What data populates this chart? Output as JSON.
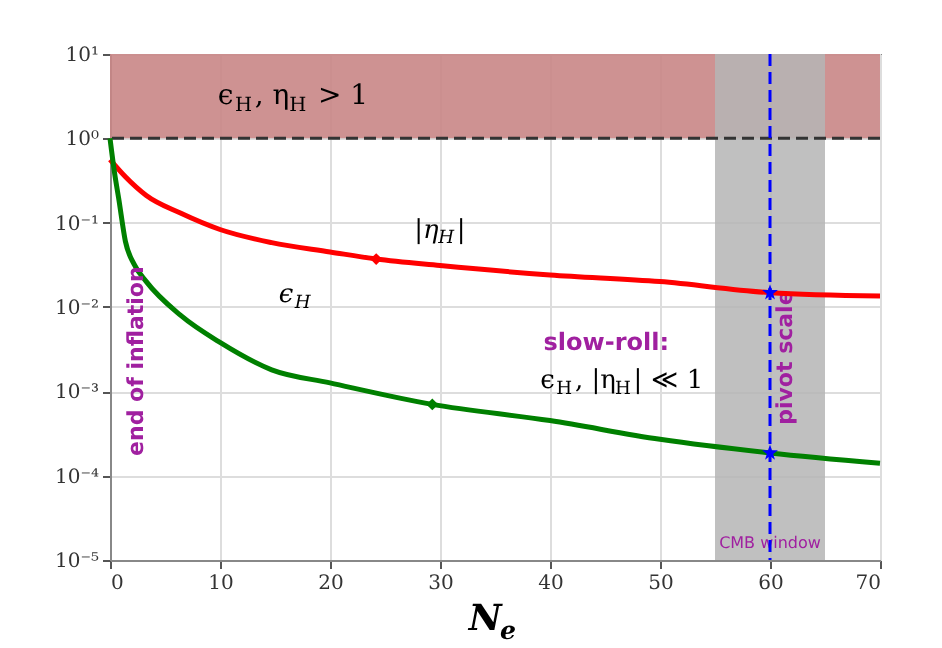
{
  "chart_data": {
    "type": "line",
    "xlabel": "N$_{e}$",
    "xlim": [
      0,
      70
    ],
    "xticks": [
      0,
      10,
      20,
      30,
      40,
      50,
      60,
      70
    ],
    "ylim": [
      1e-05,
      10
    ],
    "log": "y",
    "yticks": [
      {
        "value": 1e-05,
        "label": "10⁻⁵"
      },
      {
        "value": 0.0001,
        "label": "10⁻⁴"
      },
      {
        "value": 0.001,
        "label": "10⁻³"
      },
      {
        "value": 0.01,
        "label": "10⁻²"
      },
      {
        "value": 0.1,
        "label": "10⁻¹"
      },
      {
        "value": 1,
        "label": "10⁰"
      },
      {
        "value": 10,
        "label": "10¹"
      }
    ],
    "grid": true,
    "legend": false,
    "series": [
      {
        "name": "|η$_{H}$|",
        "type": "line",
        "color": "#ff0000",
        "x": [
          0,
          1.4,
          3.3,
          6.4,
          10,
          14.7,
          20,
          24.2,
          30,
          40,
          50,
          60,
          70
        ],
        "values": [
          0.56,
          0.35,
          0.21,
          0.13,
          0.083,
          0.058,
          0.045,
          0.037,
          0.031,
          0.024,
          0.02,
          0.0148,
          0.0135
        ]
      },
      {
        "name": "ϵ$_{H}$",
        "type": "line",
        "color": "#008000",
        "x": [
          0,
          0.4,
          0.8,
          1.4,
          2.2,
          3.3,
          6.4,
          10,
          14.7,
          20,
          29.3,
          40,
          50,
          60,
          70
        ],
        "values": [
          1.0,
          0.4,
          0.19,
          0.06,
          0.032,
          0.02,
          0.008,
          0.0038,
          0.0018,
          0.00126,
          0.0007,
          0.00045,
          0.00027,
          0.000186,
          0.00014
        ]
      },
      {
        "type": "scatter",
        "marker": "diamond",
        "color": "#ff0000",
        "x": [
          24.2
        ],
        "values": [
          0.037
        ]
      },
      {
        "type": "scatter",
        "marker": "diamond",
        "color": "#008000",
        "x": [
          29.3
        ],
        "values": [
          0.0007
        ]
      },
      {
        "type": "scatter",
        "marker": "star",
        "color": "#0000ff",
        "x": [
          60,
          60
        ],
        "values": [
          0.0148,
          0.000186
        ]
      }
    ],
    "bands": [
      {
        "axis": "y",
        "from": 1,
        "to": 10,
        "label": "ϵ$_{H}$, η$_{H}$ > 1",
        "color": "#c98686"
      },
      {
        "axis": "x",
        "from": 55,
        "to": 65,
        "label": "CMB window",
        "color": "#b5b5b5"
      }
    ],
    "ref_lines": [
      {
        "axis": "y",
        "value": 1,
        "color": "#333333",
        "line_style": "dashed"
      },
      {
        "axis": "x",
        "value": 60,
        "label": "pivot scale",
        "color": "#0000ff",
        "line_style": "dashed"
      }
    ],
    "annotations": [
      "slow-roll:",
      "ϵ$_{H}$, |η$_{H}$| ≪ 1",
      "end of inflation"
    ]
  }
}
